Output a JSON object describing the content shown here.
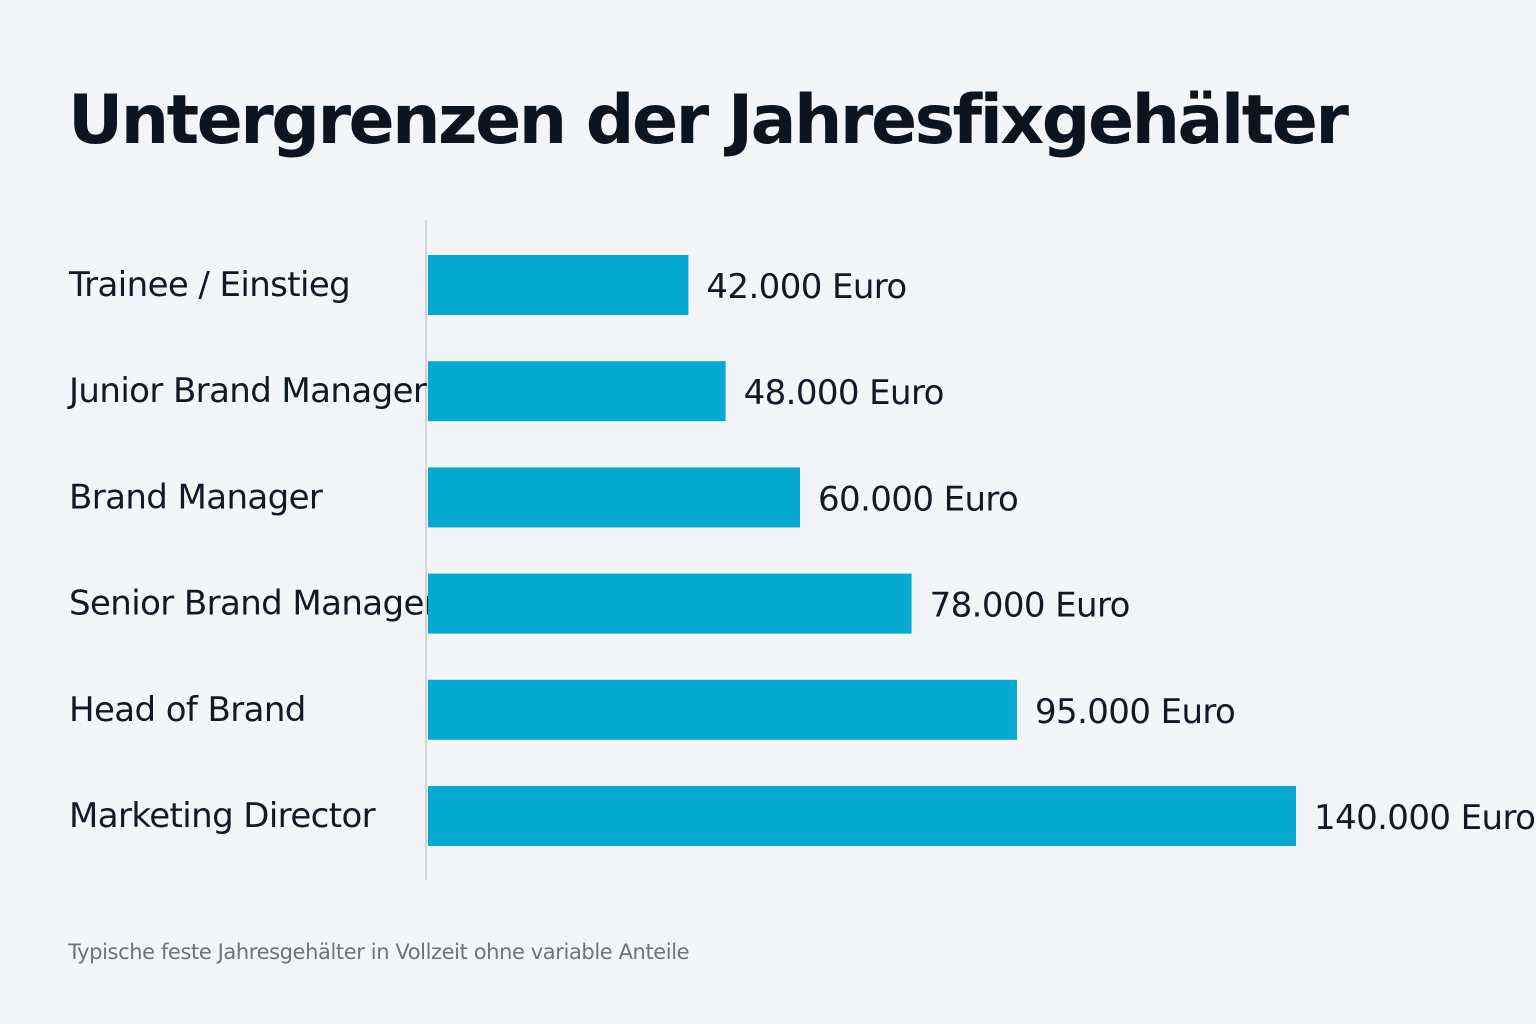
{
  "chart_data": {
    "type": "bar",
    "orientation": "horizontal",
    "title": "Untergrenzen der Jahresfixgehälter",
    "categories": [
      "Trainee / Einstieg",
      "Junior Brand Manager",
      "Brand Manager",
      "Senior Brand Manager",
      "Head of Brand",
      "Marketing Director"
    ],
    "values": [
      42000,
      48000,
      60000,
      78000,
      95000,
      140000
    ],
    "value_labels": [
      "42.000 Euro",
      "48.000 Euro",
      "60.000 Euro",
      "78.000 Euro",
      "95.000 Euro",
      "140.000 Euro"
    ],
    "xlim": [
      0,
      140000
    ],
    "grid": false,
    "bar_color": "#06a9d0",
    "axis_color": "#d1d5db",
    "note": "Typische feste Jahresgehälter in Vollzeit ohne variable Anteile"
  }
}
